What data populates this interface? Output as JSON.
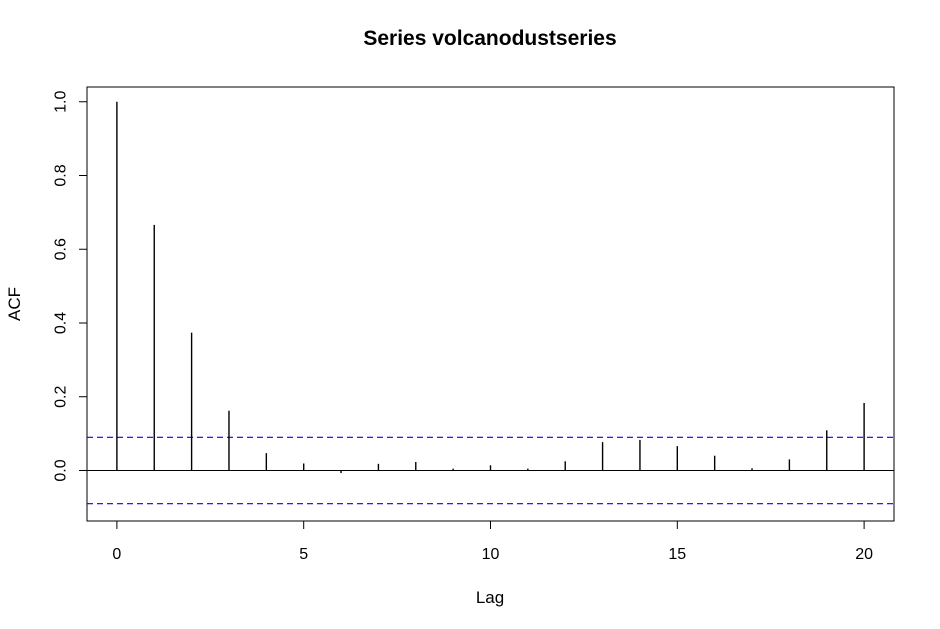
{
  "chart_data": {
    "type": "bar",
    "title": "Series  volcanodustseries",
    "xlabel": "Lag",
    "ylabel": "ACF",
    "x": [
      0,
      1,
      2,
      3,
      4,
      5,
      6,
      7,
      8,
      9,
      10,
      11,
      12,
      13,
      14,
      15,
      16,
      17,
      18,
      19,
      20
    ],
    "values": [
      1.0,
      0.666,
      0.374,
      0.162,
      0.047,
      0.019,
      -0.007,
      0.018,
      0.023,
      0.005,
      0.014,
      0.005,
      0.025,
      0.077,
      0.083,
      0.066,
      0.04,
      0.006,
      0.03,
      0.109,
      0.183
    ],
    "xlim": [
      -0.8,
      20.8
    ],
    "ylim": [
      -0.137,
      1.04
    ],
    "xticks": [
      "0",
      "5",
      "10",
      "15",
      "20"
    ],
    "yticks": [
      "0.0",
      "0.2",
      "0.4",
      "0.6",
      "0.8",
      "1.0"
    ],
    "confidence_bounds": [
      0.09,
      -0.09
    ],
    "bound_color": "#0000ff",
    "bar_color": "#000000",
    "zero_line": true,
    "grid": false
  }
}
